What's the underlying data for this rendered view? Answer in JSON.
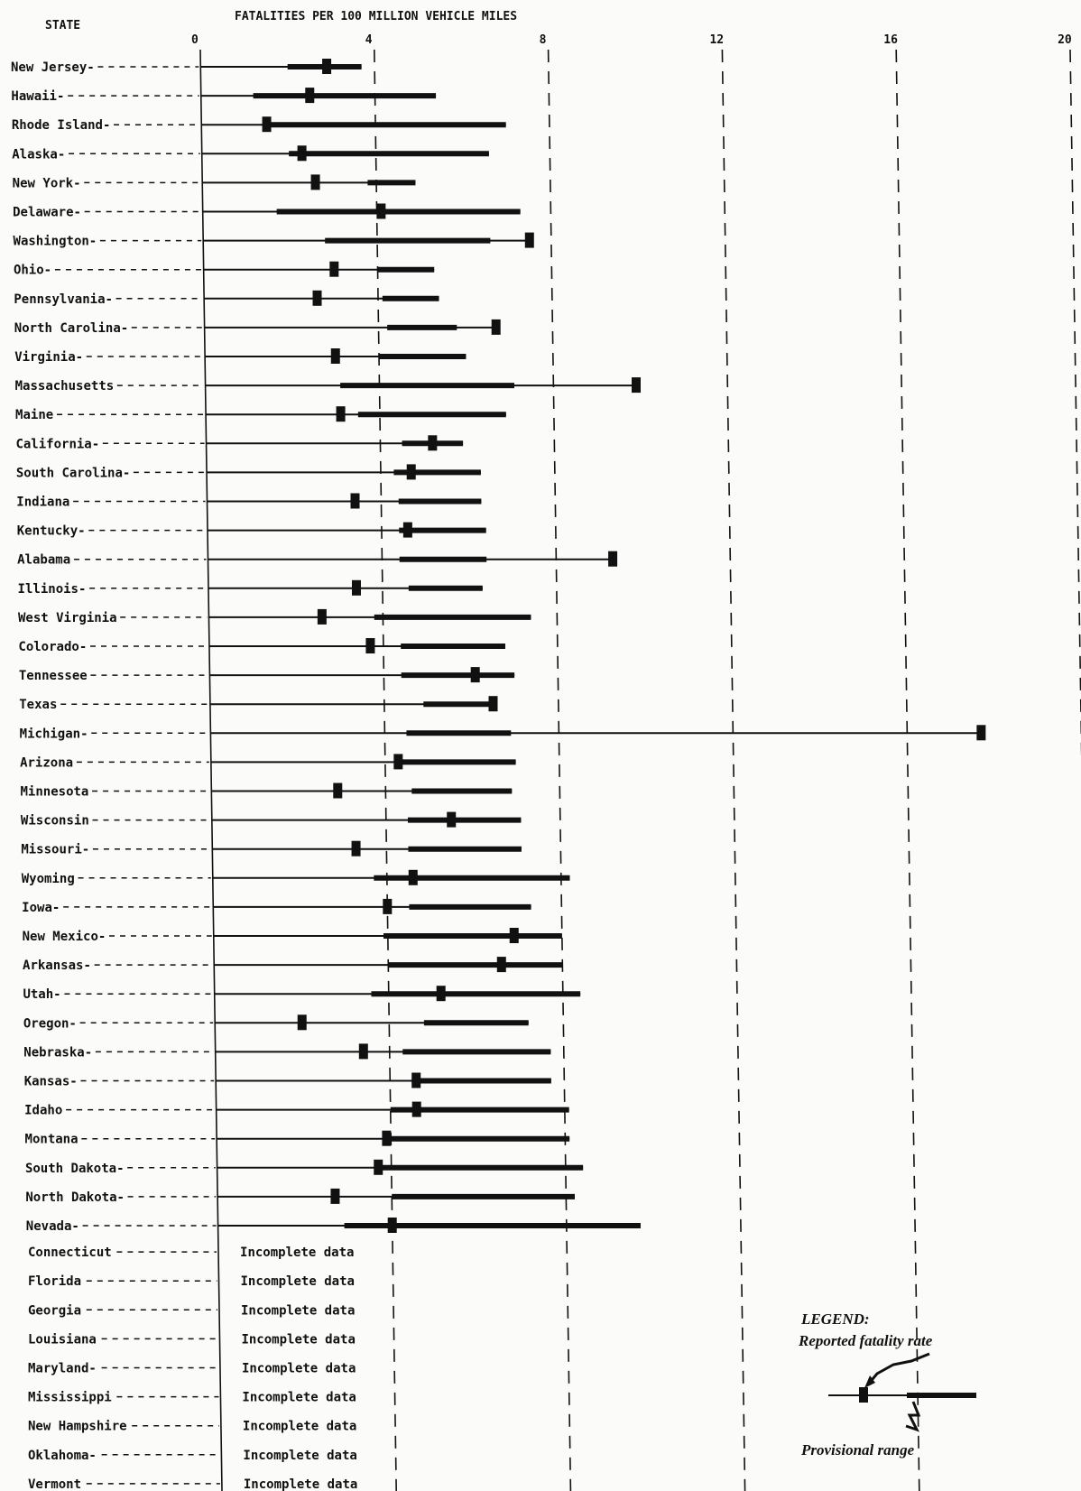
{
  "chart_data": {
    "type": "range",
    "header_left": "STATE",
    "title": "FATALITIES PER 100 MILLION VEHICLE MILES",
    "ticks": [
      0,
      4,
      8,
      12,
      16,
      20
    ],
    "xlim": [
      0,
      20
    ],
    "states": [
      {
        "name": "New Jersey",
        "label": "New Jersey-",
        "rate": 2.9,
        "thin": [
          0,
          3.7
        ],
        "thick": [
          2.0,
          3.7
        ]
      },
      {
        "name": "Hawaii",
        "label": "Hawaii-",
        "rate": 2.5,
        "thin": [
          0,
          5.4
        ],
        "thick": [
          1.2,
          5.4
        ]
      },
      {
        "name": "Rhode Island",
        "label": "Rhode Island-",
        "rate": 1.5,
        "thin": [
          0,
          7.0
        ],
        "thick": [
          1.5,
          7.0
        ]
      },
      {
        "name": "Alaska",
        "label": "Alaska-",
        "rate": 2.3,
        "thin": [
          0,
          6.6
        ],
        "thick": [
          2.0,
          6.6
        ]
      },
      {
        "name": "New York",
        "label": "New York-",
        "rate": 2.6,
        "thin": [
          0,
          4.9
        ],
        "thick": [
          3.8,
          4.9
        ]
      },
      {
        "name": "Delaware",
        "label": "Delaware-",
        "rate": 4.1,
        "thin": [
          0,
          7.3
        ],
        "thick": [
          1.7,
          7.3
        ]
      },
      {
        "name": "Washington",
        "label": "Washington-",
        "rate": 7.5,
        "thin": [
          0,
          7.5
        ],
        "thick": [
          2.8,
          6.6
        ]
      },
      {
        "name": "Ohio",
        "label": "Ohio-",
        "rate": 3.0,
        "thin": [
          0,
          5.3
        ],
        "thick": [
          4.0,
          5.3
        ]
      },
      {
        "name": "Pennsylvania",
        "label": "Pennsylvania-",
        "rate": 2.6,
        "thin": [
          0,
          5.4
        ],
        "thick": [
          4.1,
          5.4
        ]
      },
      {
        "name": "North Carolina",
        "label": "North Carolina-",
        "rate": 6.7,
        "thin": [
          0,
          6.7
        ],
        "thick": [
          4.2,
          5.8
        ]
      },
      {
        "name": "Virginia",
        "label": "Virginia-",
        "rate": 3.0,
        "thin": [
          0,
          6.0
        ],
        "thick": [
          4.0,
          6.0
        ]
      },
      {
        "name": "Massachusetts",
        "label": "Massachusetts",
        "rate": 9.9,
        "thin": [
          0,
          9.9
        ],
        "thick": [
          3.1,
          7.1
        ]
      },
      {
        "name": "Maine",
        "label": "Maine",
        "rate": 3.1,
        "thin": [
          0,
          6.9
        ],
        "thick": [
          3.5,
          6.9
        ]
      },
      {
        "name": "California",
        "label": "California-",
        "rate": 5.2,
        "thin": [
          0,
          5.9
        ],
        "thick": [
          4.5,
          5.9
        ]
      },
      {
        "name": "South Carolina",
        "label": "South Carolina-",
        "rate": 4.7,
        "thin": [
          0,
          6.3
        ],
        "thick": [
          4.3,
          6.3
        ]
      },
      {
        "name": "Indiana",
        "label": "Indiana",
        "rate": 3.4,
        "thin": [
          0,
          6.3
        ],
        "thick": [
          4.4,
          6.3
        ]
      },
      {
        "name": "Kentucky",
        "label": "Kentucky-",
        "rate": 4.6,
        "thin": [
          0,
          6.4
        ],
        "thick": [
          4.4,
          6.4
        ]
      },
      {
        "name": "Alabama",
        "label": "Alabama",
        "rate": 9.3,
        "thin": [
          0,
          9.3
        ],
        "thick": [
          4.4,
          6.4
        ]
      },
      {
        "name": "Illinois",
        "label": "Illinois-",
        "rate": 3.4,
        "thin": [
          0,
          6.3
        ],
        "thick": [
          4.6,
          6.3
        ]
      },
      {
        "name": "West Virginia",
        "label": "West Virginia",
        "rate": 2.6,
        "thin": [
          0,
          7.4
        ],
        "thick": [
          3.8,
          7.4
        ]
      },
      {
        "name": "Colorado",
        "label": "Colorado-",
        "rate": 3.7,
        "thin": [
          0,
          6.8
        ],
        "thick": [
          4.4,
          6.8
        ]
      },
      {
        "name": "Tennessee",
        "label": "Tennessee",
        "rate": 6.1,
        "thin": [
          0,
          7.0
        ],
        "thick": [
          4.4,
          7.0
        ]
      },
      {
        "name": "Texas",
        "label": "Texas",
        "rate": 6.5,
        "thin": [
          0,
          6.5
        ],
        "thick": [
          4.9,
          6.5
        ]
      },
      {
        "name": "Michigan",
        "label": "Michigan-",
        "rate": 17.7,
        "thin": [
          0,
          17.7
        ],
        "thick": [
          4.5,
          6.9
        ]
      },
      {
        "name": "Arizona",
        "label": "Arizona",
        "rate": 4.3,
        "thin": [
          0,
          7.0
        ],
        "thick": [
          4.3,
          7.0
        ]
      },
      {
        "name": "Minnesota",
        "label": "Minnesota",
        "rate": 2.9,
        "thin": [
          0,
          6.9
        ],
        "thick": [
          4.6,
          6.9
        ]
      },
      {
        "name": "Wisconsin",
        "label": "Wisconsin",
        "rate": 5.5,
        "thin": [
          0,
          7.1
        ],
        "thick": [
          4.5,
          7.1
        ]
      },
      {
        "name": "Missouri",
        "label": "Missouri-",
        "rate": 3.3,
        "thin": [
          0,
          7.1
        ],
        "thick": [
          4.5,
          7.1
        ]
      },
      {
        "name": "Wyoming",
        "label": "Wyoming",
        "rate": 4.6,
        "thin": [
          0,
          8.2
        ],
        "thick": [
          3.7,
          8.2
        ]
      },
      {
        "name": "Iowa",
        "label": "Iowa-",
        "rate": 4.0,
        "thin": [
          0,
          7.3
        ],
        "thick": [
          4.5,
          7.3
        ]
      },
      {
        "name": "New Mexico",
        "label": "New Mexico-",
        "rate": 6.9,
        "thin": [
          0,
          8.0
        ],
        "thick": [
          3.9,
          8.0
        ]
      },
      {
        "name": "Arkansas",
        "label": "Arkansas-",
        "rate": 6.6,
        "thin": [
          0,
          8.0
        ],
        "thick": [
          4.0,
          8.0
        ]
      },
      {
        "name": "Utah",
        "label": "Utah-",
        "rate": 5.2,
        "thin": [
          0,
          8.4
        ],
        "thick": [
          3.6,
          8.4
        ]
      },
      {
        "name": "Oregon",
        "label": "Oregon-",
        "rate": 2.0,
        "thin": [
          0,
          7.2
        ],
        "thick": [
          4.8,
          7.2
        ]
      },
      {
        "name": "Nebraska",
        "label": "Nebraska-",
        "rate": 3.4,
        "thin": [
          0,
          7.7
        ],
        "thick": [
          4.3,
          7.7
        ]
      },
      {
        "name": "Kansas",
        "label": "Kansas-",
        "rate": 4.6,
        "thin": [
          0,
          7.7
        ],
        "thick": [
          4.5,
          7.7
        ]
      },
      {
        "name": "Idaho",
        "label": "Idaho",
        "rate": 4.6,
        "thin": [
          0,
          8.1
        ],
        "thick": [
          4.0,
          8.1
        ]
      },
      {
        "name": "Montana",
        "label": "Montana",
        "rate": 3.9,
        "thin": [
          0,
          8.1
        ],
        "thick": [
          3.9,
          8.1
        ]
      },
      {
        "name": "South Dakota",
        "label": "South Dakota-",
        "rate": 3.7,
        "thin": [
          0,
          8.4
        ],
        "thick": [
          3.7,
          8.4
        ]
      },
      {
        "name": "North Dakota",
        "label": "North Dakota-",
        "rate": 2.7,
        "thin": [
          0,
          8.2
        ],
        "thick": [
          4.0,
          8.2
        ]
      },
      {
        "name": "Nevada",
        "label": "Nevada-",
        "rate": 4.0,
        "thin": [
          0,
          9.7
        ],
        "thick": [
          2.9,
          9.7
        ]
      }
    ],
    "incomplete": [
      {
        "label": "Connecticut",
        "note": "Incomplete data"
      },
      {
        "label": "Florida",
        "note": "Incomplete data"
      },
      {
        "label": "Georgia",
        "note": "Incomplete data"
      },
      {
        "label": "Louisiana",
        "note": "Incomplete data"
      },
      {
        "label": "Maryland-",
        "note": "Incomplete data"
      },
      {
        "label": "Mississippi",
        "note": "Incomplete data"
      },
      {
        "label": "New Hampshire",
        "note": "Incomplete data"
      },
      {
        "label": "Oklahoma-",
        "note": "Incomplete data"
      },
      {
        "label": "Vermont",
        "note": "Incomplete data"
      }
    ],
    "legend": {
      "title": "LEGEND:",
      "reported": "Reported fatality rate",
      "provisional": "Provisional range"
    }
  }
}
